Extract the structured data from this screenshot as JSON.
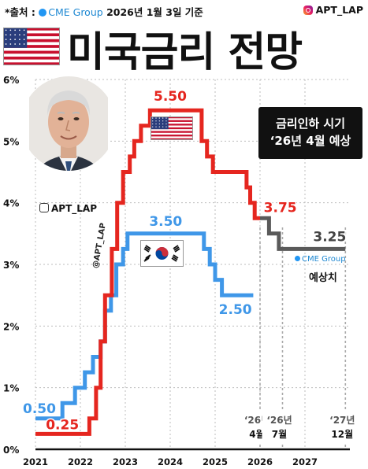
{
  "header": {
    "source_label": "*출처 :",
    "source_name": "CME Group",
    "date_text": "2026년 1월 3일 기준",
    "handle": "APT_LAP"
  },
  "title": "미국금리 전망",
  "callout": {
    "line1": "금리인하 시기",
    "line2": "‘26년 4월 예상"
  },
  "portrait_handle": "APT_LAP",
  "vertical_watermark": "@APT_LAP",
  "forecast_source": "CME Group",
  "forecast_label": "예상치",
  "chart_data": {
    "type": "line",
    "title": "미국금리 전망",
    "xlabel": "",
    "ylabel": "",
    "xlim": [
      2021,
      2028
    ],
    "ylim": [
      0,
      6
    ],
    "x_ticks": [
      "2021",
      "2022",
      "2023",
      "2024",
      "2025",
      "2026",
      "2027"
    ],
    "y_ticks": [
      "0%",
      "1%",
      "2%",
      "3%",
      "4%",
      "5%",
      "6%"
    ],
    "grid": true,
    "series": [
      {
        "color": "#e5261f",
        "forecast_color": "#5a5a5a",
        "points": [
          [
            2021.0,
            0.25
          ],
          [
            2022.2,
            0.25
          ],
          [
            2022.2,
            0.5
          ],
          [
            2022.35,
            0.5
          ],
          [
            2022.35,
            1.0
          ],
          [
            2022.45,
            1.0
          ],
          [
            2022.45,
            1.75
          ],
          [
            2022.55,
            1.75
          ],
          [
            2022.55,
            2.5
          ],
          [
            2022.7,
            2.5
          ],
          [
            2022.7,
            3.25
          ],
          [
            2022.82,
            3.25
          ],
          [
            2022.82,
            4.0
          ],
          [
            2022.95,
            4.0
          ],
          [
            2022.95,
            4.5
          ],
          [
            2023.1,
            4.5
          ],
          [
            2023.1,
            4.75
          ],
          [
            2023.2,
            4.75
          ],
          [
            2023.2,
            5.0
          ],
          [
            2023.35,
            5.0
          ],
          [
            2023.35,
            5.25
          ],
          [
            2023.55,
            5.25
          ],
          [
            2023.55,
            5.5
          ],
          [
            2024.7,
            5.5
          ],
          [
            2024.7,
            5.0
          ],
          [
            2024.82,
            5.0
          ],
          [
            2024.82,
            4.75
          ],
          [
            2024.95,
            4.75
          ],
          [
            2024.95,
            4.5
          ],
          [
            2025.7,
            4.5
          ],
          [
            2025.7,
            4.25
          ],
          [
            2025.78,
            4.25
          ],
          [
            2025.78,
            4.0
          ],
          [
            2025.88,
            4.0
          ],
          [
            2025.88,
            3.75
          ],
          [
            2026.0,
            3.75
          ]
        ],
        "forecast_points": [
          [
            2026.0,
            3.75
          ],
          [
            2026.2,
            3.75
          ],
          [
            2026.2,
            3.5
          ],
          [
            2026.42,
            3.5
          ],
          [
            2026.42,
            3.25
          ],
          [
            2027.9,
            3.25
          ]
        ],
        "labels": [
          {
            "text": "0.25",
            "x": 2021.6,
            "y": 0.25
          },
          {
            "text": "5.50",
            "x": 2024.0,
            "y": 5.5
          },
          {
            "text": "3.75",
            "x": 2026.45,
            "y": 3.75
          },
          {
            "text": "3.25",
            "x": 2027.55,
            "y": 3.25
          }
        ]
      },
      {
        "color": "#3f97e8",
        "points": [
          [
            2021.0,
            0.5
          ],
          [
            2021.6,
            0.5
          ],
          [
            2021.6,
            0.75
          ],
          [
            2021.88,
            0.75
          ],
          [
            2021.88,
            1.0
          ],
          [
            2022.1,
            1.0
          ],
          [
            2022.1,
            1.25
          ],
          [
            2022.28,
            1.25
          ],
          [
            2022.28,
            1.5
          ],
          [
            2022.45,
            1.5
          ],
          [
            2022.45,
            1.75
          ],
          [
            2022.55,
            1.75
          ],
          [
            2022.55,
            2.25
          ],
          [
            2022.68,
            2.25
          ],
          [
            2022.68,
            2.5
          ],
          [
            2022.8,
            2.5
          ],
          [
            2022.8,
            3.0
          ],
          [
            2022.95,
            3.0
          ],
          [
            2022.95,
            3.25
          ],
          [
            2023.05,
            3.25
          ],
          [
            2023.05,
            3.5
          ],
          [
            2024.75,
            3.5
          ],
          [
            2024.75,
            3.25
          ],
          [
            2024.88,
            3.25
          ],
          [
            2024.88,
            3.0
          ],
          [
            2025.0,
            3.0
          ],
          [
            2025.0,
            2.75
          ],
          [
            2025.15,
            2.75
          ],
          [
            2025.15,
            2.5
          ],
          [
            2025.85,
            2.5
          ]
        ],
        "labels": [
          {
            "text": "0.50",
            "x": 2021.0,
            "y": 0.5
          },
          {
            "text": "3.50",
            "x": 2023.9,
            "y": 3.5
          },
          {
            "text": "2.50",
            "x": 2025.45,
            "y": 2.5
          }
        ]
      }
    ],
    "annotations": [
      {
        "line1": "‘26년",
        "line2": "4월",
        "x": 2026.0
      },
      {
        "line1": "‘26년",
        "line2": "7월",
        "x": 2026.5
      },
      {
        "line1": "‘27년",
        "line2": "12월",
        "x": 2027.9
      }
    ]
  }
}
